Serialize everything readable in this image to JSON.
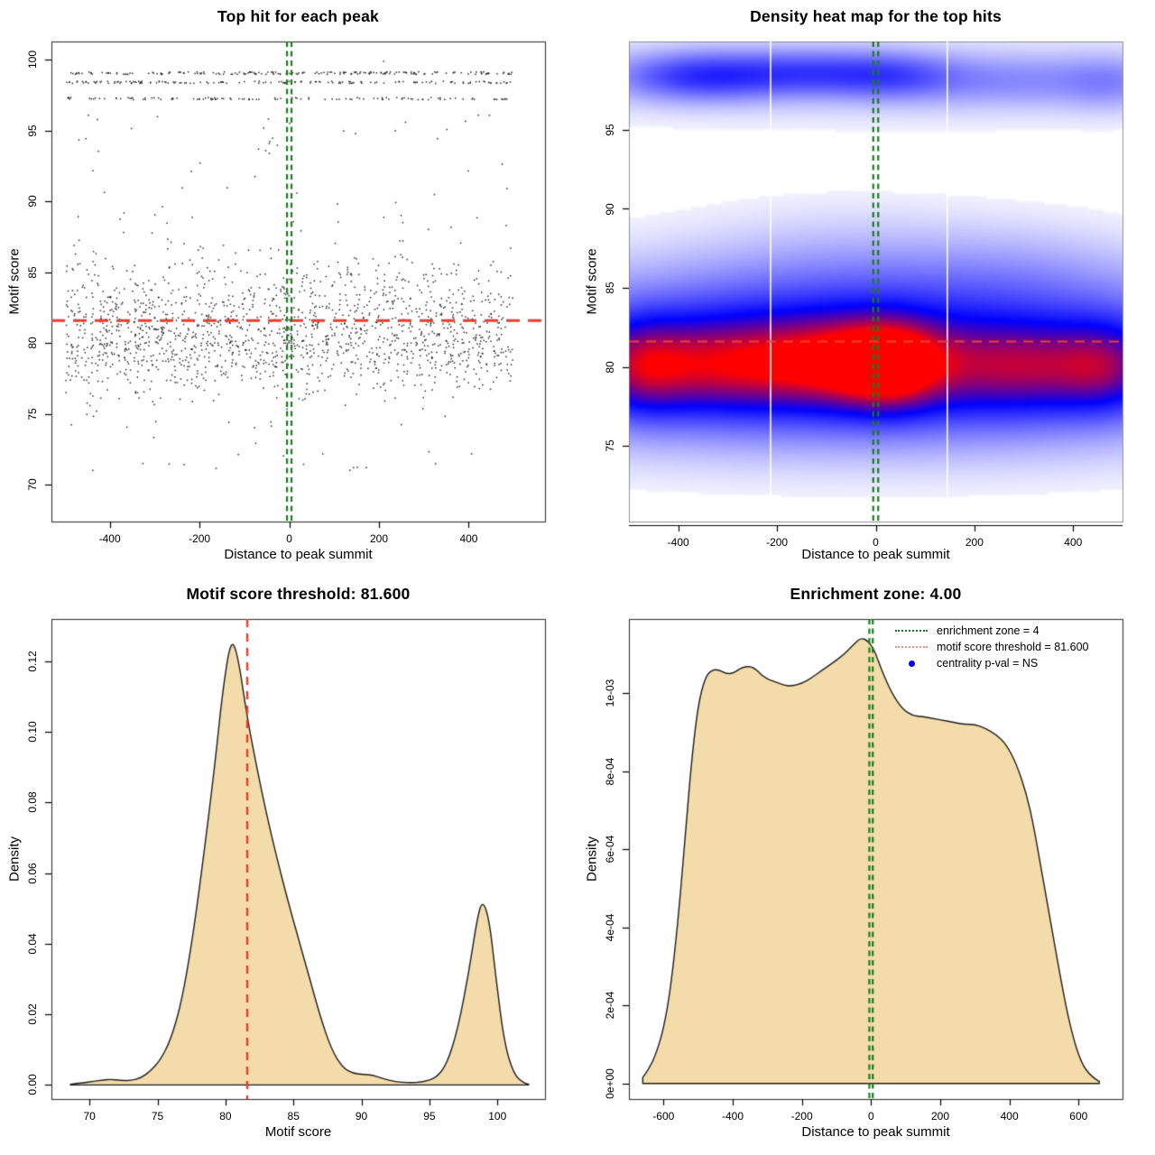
{
  "colors": {
    "background": "#ffffff",
    "point": "#111111",
    "box": "#333333",
    "area_fill": "#f4dcaa",
    "area_stroke": "#1c1c1c",
    "red_dash": "#ee3b2e",
    "green_dash": "#1d7a1f",
    "legend_red": "#f49088",
    "legend_blue": "#0000ee",
    "heatmap_low": "#ffffff",
    "heatmap_mid": "#0000ff",
    "heatmap_high": "#ff0000"
  },
  "chart_data": [
    {
      "id": "top-hit-scatter",
      "type": "scatter",
      "title": "Top hit for each peak",
      "xlabel": "Distance to peak summit",
      "ylabel": "Motif score",
      "xlim": [
        -530,
        570
      ],
      "ylim": [
        67.4,
        101.3
      ],
      "xticks": {
        "values": [
          -400,
          -200,
          0,
          200,
          400
        ],
        "labels": [
          "-400",
          "-200",
          "0",
          "200",
          "400"
        ]
      },
      "yticks": {
        "values": [
          70,
          75,
          80,
          85,
          90,
          95,
          100
        ],
        "labels": [
          "70",
          "75",
          "80",
          "85",
          "90",
          "95",
          "100"
        ]
      },
      "motif_score_threshold": 81.6,
      "enrichment_zone": 4,
      "zone_line_x": [
        -5,
        5
      ],
      "scatter_spec": {
        "seed": 1337,
        "x_range": [
          -498,
          498
        ],
        "clusters": [
          {
            "n": 1400,
            "dist": "normal",
            "mean": 80.2,
            "sd": 1.9,
            "clip": [
              73.5,
              87.5
            ]
          },
          {
            "n": 250,
            "dist": "normal",
            "mean": 84.3,
            "sd": 1.8,
            "clip": [
              82.0,
              90.0
            ]
          },
          {
            "n": 48,
            "dist": "uniform",
            "range": [
              88.3,
              96.6
            ]
          },
          {
            "n": 26,
            "dist": "uniform",
            "range": [
              70.9,
              74.6
            ]
          }
        ],
        "bands": [
          {
            "y": 99.07,
            "n": 185,
            "jitter": 0.09
          },
          {
            "y": 98.42,
            "n": 148,
            "jitter": 0.08
          },
          {
            "y": 97.27,
            "n": 118,
            "jitter": 0.08
          }
        ],
        "outliers": [
          [
            210,
            99.9
          ],
          [
            -57,
            95.2
          ],
          [
            148,
            94.8
          ],
          [
            236,
            95.0
          ]
        ]
      }
    },
    {
      "id": "density-heatmap",
      "type": "heatmap",
      "title": "Density heat map for the top hits",
      "xlabel": "Distance to peak summit",
      "ylabel": "Motif score",
      "xlim": [
        -500,
        500
      ],
      "ylim": [
        70.2,
        100.6
      ],
      "xticks": {
        "values": [
          -400,
          -200,
          0,
          200,
          400
        ],
        "labels": [
          "-400",
          "-200",
          "0",
          "200",
          "400"
        ]
      },
      "yticks": {
        "values": [
          75,
          80,
          85,
          90,
          95
        ],
        "labels": [
          "75",
          "80",
          "85",
          "90",
          "95"
        ]
      },
      "motif_score_threshold": 81.6,
      "zone_line_x": [
        -5,
        5
      ],
      "white_lines_x": [
        -213,
        145
      ],
      "blobs": [
        {
          "x": 0,
          "y": 80.3,
          "sx": 520,
          "sy": 3.1,
          "a": 0.42
        },
        {
          "x": -480,
          "y": 80.0,
          "sx": 70,
          "sy": 2.0,
          "a": 0.42
        },
        {
          "x": -330,
          "y": 80.1,
          "sx": 120,
          "sy": 2.0,
          "a": 0.46
        },
        {
          "x": -70,
          "y": 80.3,
          "sx": 130,
          "sy": 1.9,
          "a": 0.6
        },
        {
          "x": 30,
          "y": 80.1,
          "sx": 70,
          "sy": 1.8,
          "a": 0.5
        },
        {
          "x": 300,
          "y": 80.0,
          "sx": 130,
          "sy": 1.9,
          "a": 0.44
        },
        {
          "x": 470,
          "y": 80.0,
          "sx": 70,
          "sy": 1.9,
          "a": 0.34
        },
        {
          "x": 0,
          "y": 83.8,
          "sx": 520,
          "sy": 2.4,
          "a": 0.16
        },
        {
          "x": 0,
          "y": 77.0,
          "sx": 520,
          "sy": 2.2,
          "a": 0.1
        },
        {
          "x": -50,
          "y": 86.8,
          "sx": 220,
          "sy": 2.3,
          "a": 0.07
        },
        {
          "x": 310,
          "y": 86.3,
          "sx": 160,
          "sy": 2.0,
          "a": 0.05
        },
        {
          "x": 0,
          "y": 98.2,
          "sx": 520,
          "sy": 1.7,
          "a": 0.09
        },
        {
          "x": -360,
          "y": 98.4,
          "sx": 115,
          "sy": 1.05,
          "a": 0.34
        },
        {
          "x": -130,
          "y": 98.6,
          "sx": 120,
          "sy": 1.0,
          "a": 0.26
        },
        {
          "x": 40,
          "y": 98.4,
          "sx": 90,
          "sy": 1.0,
          "a": 0.2
        },
        {
          "x": 290,
          "y": 98.1,
          "sx": 150,
          "sy": 1.1,
          "a": 0.13
        },
        {
          "x": 480,
          "y": 98.0,
          "sx": 70,
          "sy": 1.2,
          "a": 0.12
        }
      ]
    },
    {
      "id": "motif-score-density",
      "type": "area",
      "title": "Motif score threshold: 81.600",
      "xlabel": "Motif score",
      "ylabel": "Density",
      "xlim": [
        67.2,
        103.5
      ],
      "ylim": [
        -0.004,
        0.132
      ],
      "xticks": {
        "values": [
          70,
          75,
          80,
          85,
          90,
          95,
          100
        ],
        "labels": [
          "70",
          "75",
          "80",
          "85",
          "90",
          "95",
          "100"
        ]
      },
      "yticks": {
        "values": [
          0.0,
          0.02,
          0.04,
          0.06,
          0.08,
          0.1,
          0.12
        ],
        "labels": [
          "0.00",
          "0.02",
          "0.04",
          "0.06",
          "0.08",
          "0.10",
          "0.12"
        ]
      },
      "threshold_x": 81.6,
      "points": [
        [
          68.6,
          0.0002
        ],
        [
          69.5,
          0.0006
        ],
        [
          70.3,
          0.001
        ],
        [
          71.0,
          0.0014
        ],
        [
          71.6,
          0.0016
        ],
        [
          72.3,
          0.0013
        ],
        [
          73.0,
          0.0012
        ],
        [
          73.8,
          0.002
        ],
        [
          74.5,
          0.004
        ],
        [
          75.2,
          0.007
        ],
        [
          76.0,
          0.013
        ],
        [
          76.8,
          0.024
        ],
        [
          77.6,
          0.042
        ],
        [
          78.4,
          0.065
        ],
        [
          79.2,
          0.09
        ],
        [
          79.8,
          0.112
        ],
        [
          80.4,
          0.1265
        ],
        [
          80.9,
          0.122
        ],
        [
          81.6,
          0.104
        ],
        [
          82.3,
          0.09
        ],
        [
          83.0,
          0.077
        ],
        [
          83.8,
          0.064
        ],
        [
          84.6,
          0.052
        ],
        [
          85.4,
          0.041
        ],
        [
          86.2,
          0.03
        ],
        [
          87.0,
          0.019
        ],
        [
          87.8,
          0.01
        ],
        [
          88.6,
          0.005
        ],
        [
          89.4,
          0.0032
        ],
        [
          90.2,
          0.003
        ],
        [
          90.8,
          0.0028
        ],
        [
          91.6,
          0.0018
        ],
        [
          92.5,
          0.0009
        ],
        [
          93.5,
          0.0006
        ],
        [
          94.5,
          0.0008
        ],
        [
          95.5,
          0.002
        ],
        [
          96.3,
          0.006
        ],
        [
          97.1,
          0.016
        ],
        [
          97.9,
          0.032
        ],
        [
          98.5,
          0.047
        ],
        [
          98.9,
          0.0525
        ],
        [
          99.4,
          0.047
        ],
        [
          99.9,
          0.03
        ],
        [
          100.5,
          0.012
        ],
        [
          101.2,
          0.003
        ],
        [
          101.9,
          0.0006
        ],
        [
          102.3,
          0.0002
        ]
      ]
    },
    {
      "id": "summit-density",
      "type": "area",
      "title": "Enrichment zone: 4.00",
      "xlabel": "Distance to peak summit",
      "ylabel": "Density",
      "xlim": [
        -700,
        727
      ],
      "ylim": [
        -4e-05,
        0.00119
      ],
      "xticks": {
        "values": [
          -600,
          -400,
          -200,
          0,
          200,
          400,
          600
        ],
        "labels": [
          "-600",
          "-400",
          "-200",
          "0",
          "200",
          "400",
          "600"
        ]
      },
      "yticks": {
        "values": [
          0,
          0.0002,
          0.0004,
          0.0006,
          0.0008,
          0.001
        ],
        "labels": [
          "0e+00",
          "2e-04",
          "4e-04",
          "6e-04",
          "8e-04",
          "1e-03"
        ]
      },
      "zone_line_x": [
        -5,
        5
      ],
      "points": [
        [
          -660,
          1.5e-05
        ],
        [
          -640,
          4e-05
        ],
        [
          -620,
          8e-05
        ],
        [
          -600,
          0.00014
        ],
        [
          -580,
          0.00024
        ],
        [
          -560,
          0.0004
        ],
        [
          -540,
          0.0006
        ],
        [
          -520,
          0.00082
        ],
        [
          -500,
          0.00097
        ],
        [
          -480,
          0.00104
        ],
        [
          -460,
          0.00106
        ],
        [
          -440,
          0.00106
        ],
        [
          -420,
          0.00105
        ],
        [
          -400,
          0.00105
        ],
        [
          -370,
          0.001068
        ],
        [
          -340,
          0.001068
        ],
        [
          -310,
          0.00104
        ],
        [
          -280,
          0.00103
        ],
        [
          -250,
          0.00102
        ],
        [
          -230,
          0.001018
        ],
        [
          -200,
          0.001025
        ],
        [
          -170,
          0.00104
        ],
        [
          -140,
          0.00106
        ],
        [
          -110,
          0.001078
        ],
        [
          -80,
          0.001098
        ],
        [
          -50,
          0.001125
        ],
        [
          -30,
          0.001142
        ],
        [
          -10,
          0.001135
        ],
        [
          10,
          0.00111
        ],
        [
          30,
          0.00106
        ],
        [
          60,
          0.001
        ],
        [
          90,
          0.00096
        ],
        [
          120,
          0.000942
        ],
        [
          150,
          0.00094
        ],
        [
          180,
          0.000935
        ],
        [
          210,
          0.00093
        ],
        [
          240,
          0.000925
        ],
        [
          270,
          0.00092
        ],
        [
          300,
          0.00092
        ],
        [
          330,
          0.00091
        ],
        [
          360,
          0.000895
        ],
        [
          390,
          0.00087
        ],
        [
          420,
          0.00082
        ],
        [
          450,
          0.00074
        ],
        [
          470,
          0.00066
        ],
        [
          490,
          0.00056
        ],
        [
          510,
          0.00046
        ],
        [
          530,
          0.00036
        ],
        [
          550,
          0.00026
        ],
        [
          570,
          0.00017
        ],
        [
          590,
          0.0001
        ],
        [
          610,
          5e-05
        ],
        [
          630,
          2.5e-05
        ],
        [
          650,
          1e-05
        ],
        [
          660,
          5e-06
        ]
      ],
      "legend": {
        "items": [
          {
            "swatch": "green-dots",
            "label": "enrichment zone = 4"
          },
          {
            "swatch": "red-dots",
            "label": "motif score threshold = 81.600"
          },
          {
            "swatch": "blue-dot",
            "label": "centrality p-val = NS"
          }
        ]
      }
    }
  ]
}
